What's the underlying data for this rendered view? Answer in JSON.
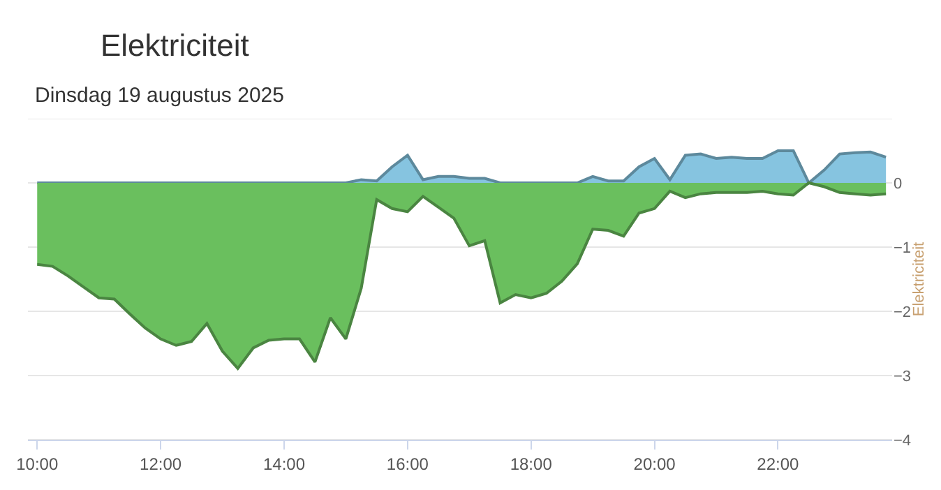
{
  "chart_data": {
    "type": "area",
    "title": "Elektriciteit",
    "subtitle": "Dinsdag 19 augustus 2025",
    "ylabel": "Elektriciteit",
    "x": [
      10.0,
      10.25,
      10.5,
      10.75,
      11.0,
      11.25,
      11.5,
      11.75,
      12.0,
      12.25,
      12.5,
      12.75,
      13.0,
      13.25,
      13.5,
      13.75,
      14.0,
      14.25,
      14.5,
      14.75,
      15.0,
      15.25,
      15.5,
      15.75,
      16.0,
      16.25,
      16.5,
      16.75,
      17.0,
      17.25,
      17.5,
      17.75,
      18.0,
      18.25,
      18.5,
      18.75,
      19.0,
      19.25,
      19.5,
      19.75,
      20.0,
      20.25,
      20.5,
      20.75,
      21.0,
      21.25,
      21.5,
      21.75,
      22.0,
      22.25,
      22.5,
      22.75,
      23.0,
      23.25,
      23.5,
      23.75
    ],
    "series": [
      {
        "color": "#86c4e0",
        "values": [
          0,
          0,
          0,
          0,
          0,
          0,
          0,
          0,
          0,
          0,
          0,
          0,
          0,
          0,
          0,
          0,
          0,
          0,
          0,
          0,
          0,
          0.05,
          0.03,
          0.25,
          0.43,
          0.05,
          0.1,
          0.1,
          0.07,
          0.07,
          0,
          0,
          0,
          0,
          0,
          0,
          0.1,
          0.03,
          0.03,
          0.25,
          0.38,
          0.05,
          0.43,
          0.45,
          0.38,
          0.4,
          0.38,
          0.38,
          0.5,
          0.5,
          0,
          0.2,
          0.45,
          0.47,
          0.48,
          0.4
        ]
      },
      {
        "color": "#6abf5e",
        "values": [
          -1.27,
          -1.3,
          -1.45,
          -1.62,
          -1.79,
          -1.81,
          -2.04,
          -2.26,
          -2.43,
          -2.53,
          -2.47,
          -2.19,
          -2.62,
          -2.89,
          -2.57,
          -2.45,
          -2.43,
          -2.43,
          -2.79,
          -2.1,
          -2.43,
          -1.64,
          -0.26,
          -0.4,
          -0.45,
          -0.21,
          -0.38,
          -0.55,
          -0.98,
          -0.9,
          -1.87,
          -1.74,
          -1.79,
          -1.72,
          -1.53,
          -1.26,
          -0.72,
          -0.74,
          -0.83,
          -0.47,
          -0.4,
          -0.13,
          -0.23,
          -0.17,
          -0.15,
          -0.15,
          -0.15,
          -0.13,
          -0.17,
          -0.19,
          0,
          -0.06,
          -0.15,
          -0.17,
          -0.19,
          -0.17
        ]
      }
    ],
    "xlim": [
      9.85,
      23.85
    ],
    "xticks": [
      {
        "value": 10,
        "label": "10:00"
      },
      {
        "value": 12,
        "label": "12:00"
      },
      {
        "value": 14,
        "label": "14:00"
      },
      {
        "value": 16,
        "label": "16:00"
      },
      {
        "value": 18,
        "label": "18:00"
      },
      {
        "value": 20,
        "label": "20:00"
      },
      {
        "value": 22,
        "label": "22:00"
      }
    ],
    "ylim": [
      -4,
      1
    ],
    "yticks": [
      {
        "value": 1,
        "label": null
      },
      0,
      -1,
      -2,
      -3,
      -4
    ],
    "grid": "y",
    "marker": "none",
    "line_style": "solid"
  }
}
